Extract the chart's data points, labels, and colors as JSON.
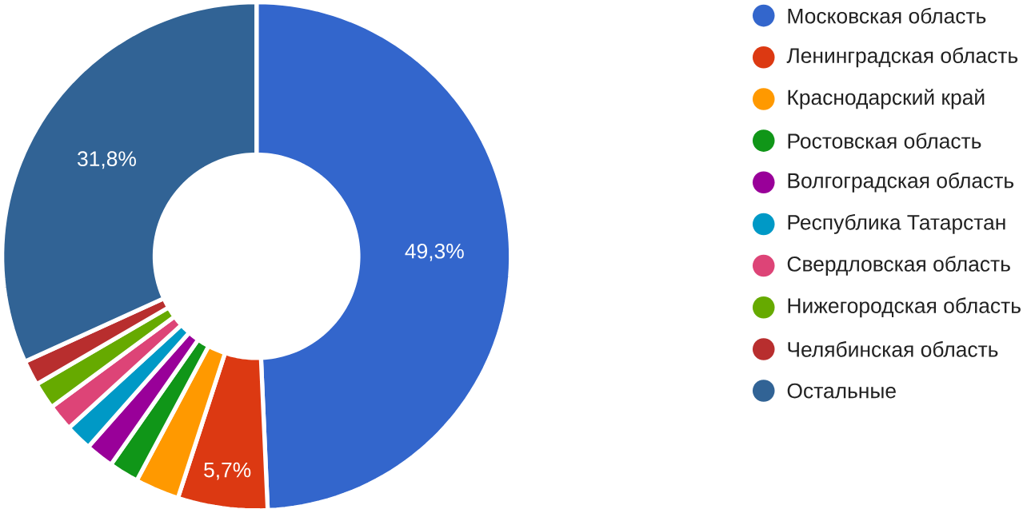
{
  "chart_data": {
    "type": "donut",
    "categories": [
      "Московская область",
      "Ленинградская область",
      "Краснодарский край",
      "Ростовская область",
      "Волгоградская область",
      "Республика Татарстан",
      "Свердловская область",
      "Нижегородская область",
      "Челябинская область",
      "Остальные"
    ],
    "values": [
      49.3,
      5.7,
      2.8,
      1.9,
      1.8,
      1.7,
      1.7,
      1.7,
      1.6,
      31.8
    ],
    "value_labels": [
      "49,3%",
      "5,7%",
      null,
      null,
      null,
      null,
      null,
      null,
      null,
      "31,8%"
    ],
    "colors": [
      "#3366cc",
      "#dc3912",
      "#ff9900",
      "#109618",
      "#990099",
      "#0099c6",
      "#dd4477",
      "#66aa00",
      "#b82e2e",
      "#316395"
    ],
    "legend": "right"
  }
}
